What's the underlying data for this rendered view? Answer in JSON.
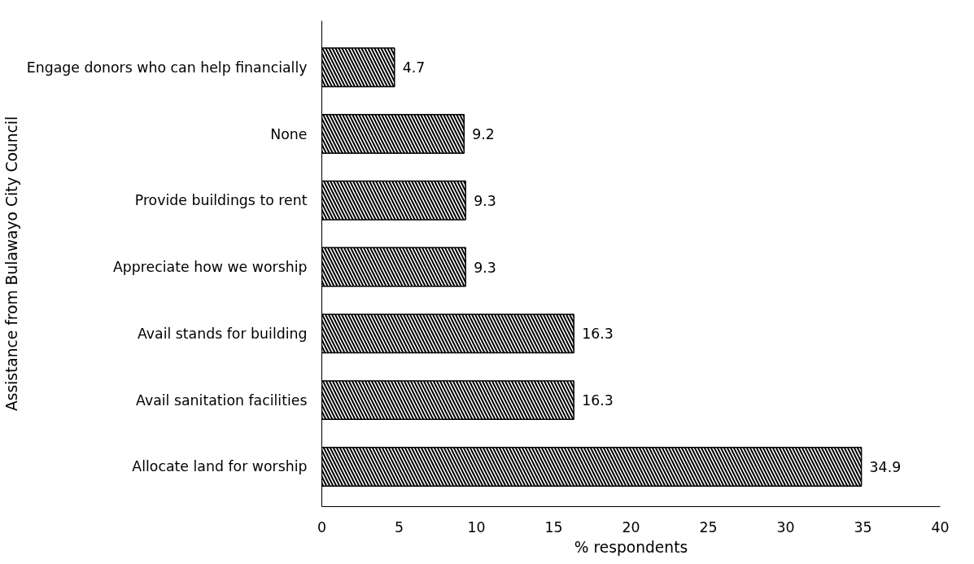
{
  "chart_data": {
    "type": "bar",
    "orientation": "horizontal",
    "xlabel": "% respondents",
    "ylabel": "Assistance from Bulawayo City Council",
    "categories": [
      "Engage donors who can help financially",
      "None",
      "Provide buildings to rent",
      "Appreciate how we worship",
      "Avail stands for building",
      "Avail sanitation facilities",
      "Allocate land for worship"
    ],
    "values": [
      4.7,
      9.2,
      9.3,
      9.3,
      16.3,
      16.3,
      34.9
    ],
    "color": "#000000",
    "xlim": [
      0,
      40
    ],
    "xticks": [
      0,
      5,
      10,
      15,
      20,
      25,
      30,
      35,
      40
    ],
    "grid": false,
    "data_labels": true
  }
}
